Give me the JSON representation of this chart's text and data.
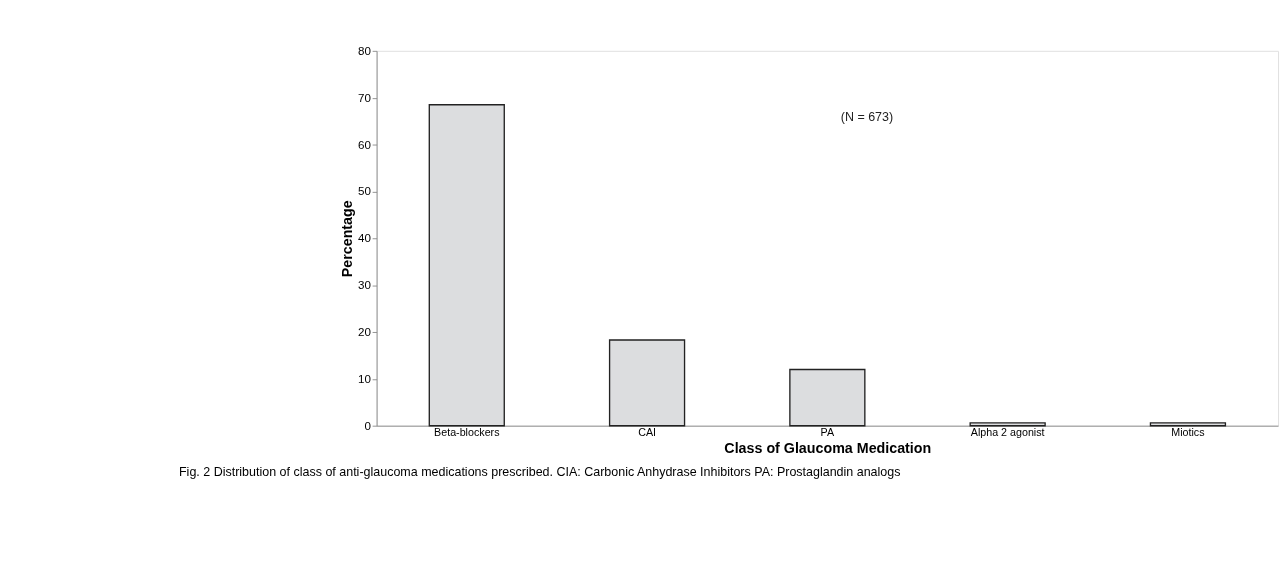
{
  "chart_data": {
    "type": "bar",
    "xlabel": "Class of Glaucoma Medication",
    "ylabel": "Percentage",
    "categories": [
      "Beta-blockers",
      "CAI",
      "PA",
      "Alpha 2 agonist",
      "Miotics"
    ],
    "values": [
      68.5,
      18.3,
      12.0,
      0.6,
      0.6
    ],
    "color": "#dcdddf",
    "ylim": [
      0,
      80
    ],
    "yticks": [
      0,
      10,
      20,
      30,
      40,
      50,
      60,
      70,
      80
    ],
    "grid": false,
    "annotations": [
      "(N = 673)",
      "Fig. 2 Distribution of class of anti-glaucoma medications prescribed. CIA: Carbonic Anhydrase Inhibitors PA: Prostaglandin analogs"
    ]
  }
}
